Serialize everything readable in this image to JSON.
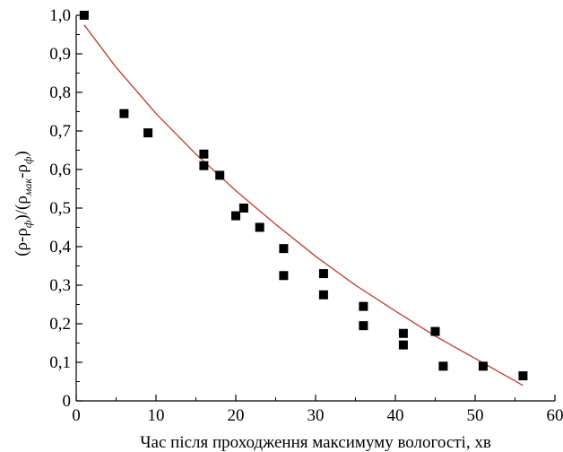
{
  "chart_data": {
    "type": "scatter",
    "xlabel": "Час після проходження максимуму вологості, хв",
    "ylabel": {
      "p1": "(ρ-ρ",
      "s1": "ф",
      "p2": ")/(ρ",
      "s2": "мак",
      "p3": "-ρ",
      "s3": "ф",
      "p4": ")"
    },
    "xlim": [
      0,
      60
    ],
    "ylim": [
      0,
      1.0
    ],
    "x_ticks": [
      0,
      10,
      20,
      30,
      40,
      50,
      60
    ],
    "x_tick_labels": [
      "0",
      "10",
      "20",
      "30",
      "40",
      "50",
      "60"
    ],
    "y_ticks": [
      0,
      0.1,
      0.2,
      0.3,
      0.4,
      0.5,
      0.6,
      0.7,
      0.8,
      0.9,
      1.0
    ],
    "y_tick_labels": [
      "0",
      "0,1",
      "0,2",
      "0,3",
      "0,4",
      "0,5",
      "0,6",
      "0,7",
      "0,8",
      "0,9",
      "1,0"
    ],
    "series": [
      {
        "marker": "square",
        "color": "#000000",
        "x": [
          1,
          6,
          9,
          16,
          16,
          18,
          20,
          21,
          23,
          26,
          26,
          31,
          31,
          36,
          36,
          41,
          41,
          45,
          46,
          51,
          56
        ],
        "y": [
          1.0,
          0.745,
          0.695,
          0.64,
          0.61,
          0.585,
          0.48,
          0.5,
          0.45,
          0.395,
          0.325,
          0.33,
          0.275,
          0.245,
          0.195,
          0.175,
          0.145,
          0.18,
          0.09,
          0.09,
          0.065
        ]
      }
    ],
    "fit_curve": {
      "color": "#c0392b",
      "x": [
        1,
        5,
        10,
        15,
        20,
        25,
        30,
        35,
        40,
        45,
        50,
        56
      ],
      "y": [
        0.975,
        0.865,
        0.745,
        0.64,
        0.545,
        0.458,
        0.375,
        0.3,
        0.233,
        0.168,
        0.11,
        0.04
      ]
    },
    "grid": false
  }
}
